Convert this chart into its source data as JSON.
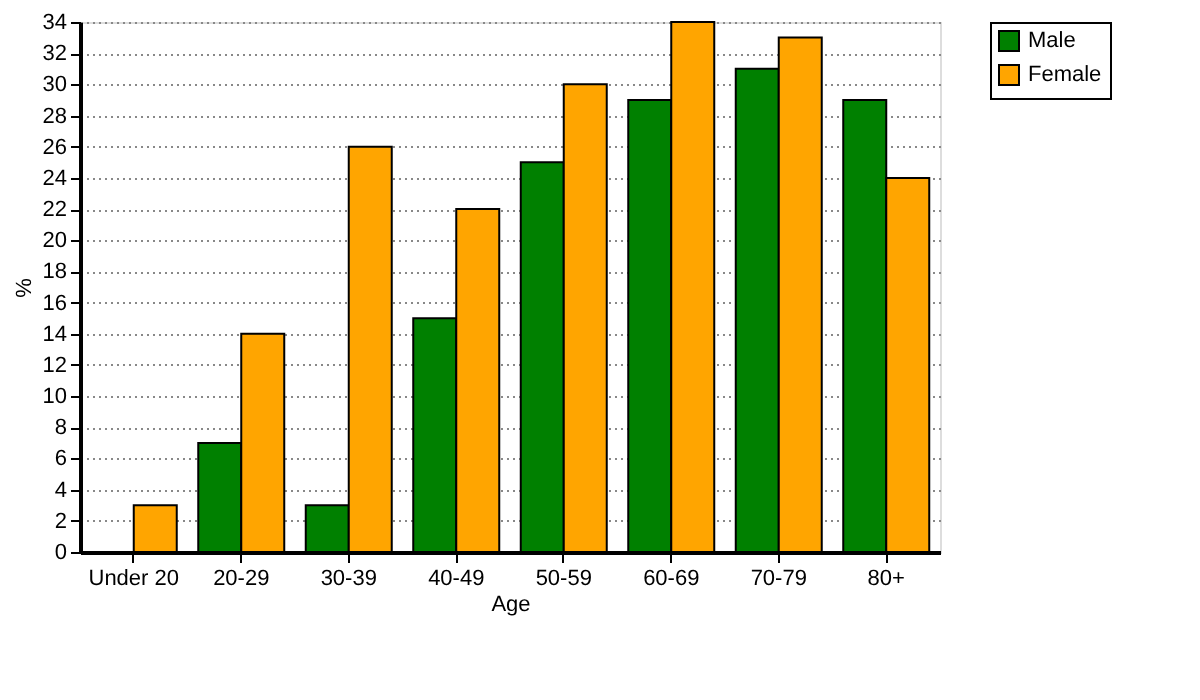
{
  "chart_data": {
    "type": "bar",
    "xlabel": "Age",
    "ylabel": "%",
    "categories": [
      "Under 20",
      "20-29",
      "30-39",
      "40-49",
      "50-59",
      "60-69",
      "70-79",
      "80+"
    ],
    "series": [
      {
        "name": "Male",
        "color": "#008000",
        "values": [
          null,
          7,
          3,
          15,
          25,
          29,
          31,
          29
        ]
      },
      {
        "name": "Female",
        "color": "#ffa500",
        "values": [
          3,
          14,
          26,
          22,
          30,
          34,
          33,
          24
        ]
      }
    ],
    "ylim": [
      0,
      34
    ],
    "yticks": [
      0,
      2,
      4,
      6,
      8,
      10,
      12,
      14,
      16,
      18,
      20,
      22,
      24,
      26,
      28,
      30,
      32,
      34
    ],
    "grid": "y",
    "legend": "top right"
  }
}
